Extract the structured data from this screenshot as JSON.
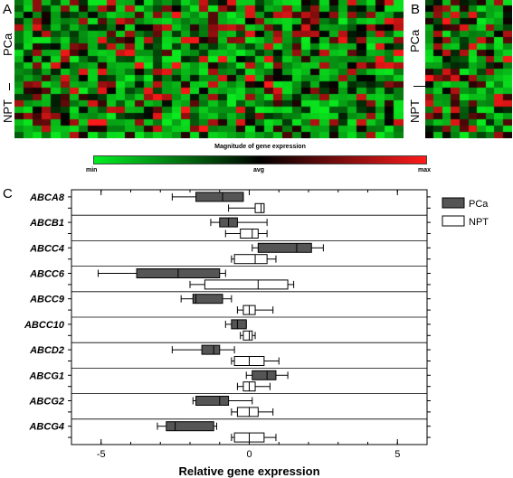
{
  "panels": {
    "a": "A",
    "b": "B",
    "c": "C"
  },
  "heatmap_a": {
    "groups": [
      "PCa",
      "NPT"
    ]
  },
  "heatmap_b": {
    "groups": [
      "PCa",
      "NPT"
    ]
  },
  "legend": {
    "title": "Magnitude of gene expression",
    "min_label": "min",
    "avg_label": "avg",
    "max_label": "max",
    "colors": {
      "min": "#00ee22",
      "avg": "#000000",
      "max": "#ff1a1a"
    }
  },
  "chart_data": {
    "type": "boxplot",
    "orientation": "horizontal",
    "xlabel": "Relative gene expression",
    "xlim": [
      -6,
      6
    ],
    "xticks": [
      -5,
      0,
      5
    ],
    "grid": "horizontal separators between genes",
    "legend_position": "top-right",
    "series": [
      {
        "name": "PCa",
        "color": "#555555"
      },
      {
        "name": "NPT",
        "color": "#ffffff"
      }
    ],
    "genes": [
      {
        "name": "ABCA8",
        "PCa": {
          "whisker_low": -2.6,
          "q1": -1.8,
          "median": -0.9,
          "q3": -0.2,
          "whisker_high": -0.2
        },
        "NPT": {
          "whisker_low": -0.7,
          "q1": 0.2,
          "median": 0.4,
          "q3": 0.5,
          "whisker_high": 0.5
        }
      },
      {
        "name": "ABCB1",
        "PCa": {
          "whisker_low": -1.3,
          "q1": -1.0,
          "median": -0.7,
          "q3": -0.4,
          "whisker_high": 0.6
        },
        "NPT": {
          "whisker_low": -0.8,
          "q1": -0.3,
          "median": 0.1,
          "q3": 0.3,
          "whisker_high": 0.6
        }
      },
      {
        "name": "ABCC4",
        "PCa": {
          "whisker_low": 0.1,
          "q1": 0.3,
          "median": 1.6,
          "q3": 2.1,
          "whisker_high": 2.5
        },
        "NPT": {
          "whisker_low": -0.6,
          "q1": -0.5,
          "median": 0.2,
          "q3": 0.6,
          "whisker_high": 0.9
        }
      },
      {
        "name": "ABCC6",
        "PCa": {
          "whisker_low": -5.1,
          "q1": -3.8,
          "median": -2.4,
          "q3": -1.0,
          "whisker_high": -0.8
        },
        "NPT": {
          "whisker_low": -2.0,
          "q1": -1.5,
          "median": 0.3,
          "q3": 1.3,
          "whisker_high": 1.5
        }
      },
      {
        "name": "ABCC9",
        "PCa": {
          "whisker_low": -2.3,
          "q1": -1.9,
          "median": -1.8,
          "q3": -0.9,
          "whisker_high": -0.6
        },
        "NPT": {
          "whisker_low": -0.4,
          "q1": -0.2,
          "median": 0.0,
          "q3": 0.2,
          "whisker_high": 0.8
        }
      },
      {
        "name": "ABCC10",
        "PCa": {
          "whisker_low": -0.8,
          "q1": -0.6,
          "median": -0.4,
          "q3": -0.1,
          "whisker_high": -0.1
        },
        "NPT": {
          "whisker_low": -0.3,
          "q1": -0.2,
          "median": 0.0,
          "q3": 0.1,
          "whisker_high": 0.2
        }
      },
      {
        "name": "ABCD2",
        "PCa": {
          "whisker_low": -2.6,
          "q1": -1.6,
          "median": -1.2,
          "q3": -1.0,
          "whisker_high": -0.5
        },
        "NPT": {
          "whisker_low": -0.6,
          "q1": -0.5,
          "median": 0.0,
          "q3": 0.5,
          "whisker_high": 1.0
        }
      },
      {
        "name": "ABCG1",
        "PCa": {
          "whisker_low": -0.1,
          "q1": 0.1,
          "median": 0.6,
          "q3": 0.9,
          "whisker_high": 1.3
        },
        "NPT": {
          "whisker_low": -0.4,
          "q1": -0.2,
          "median": 0.0,
          "q3": 0.2,
          "whisker_high": 0.7
        }
      },
      {
        "name": "ABCG2",
        "PCa": {
          "whisker_low": -1.9,
          "q1": -1.8,
          "median": -1.0,
          "q3": -0.7,
          "whisker_high": 0.1
        },
        "NPT": {
          "whisker_low": -0.6,
          "q1": -0.4,
          "median": 0.0,
          "q3": 0.3,
          "whisker_high": 0.8
        }
      },
      {
        "name": "ABCG4",
        "PCa": {
          "whisker_low": -3.1,
          "q1": -2.8,
          "median": -2.5,
          "q3": -1.2,
          "whisker_high": -1.1
        },
        "NPT": {
          "whisker_low": -0.6,
          "q1": -0.5,
          "median": 0.0,
          "q3": 0.5,
          "whisker_high": 0.9
        }
      }
    ]
  }
}
